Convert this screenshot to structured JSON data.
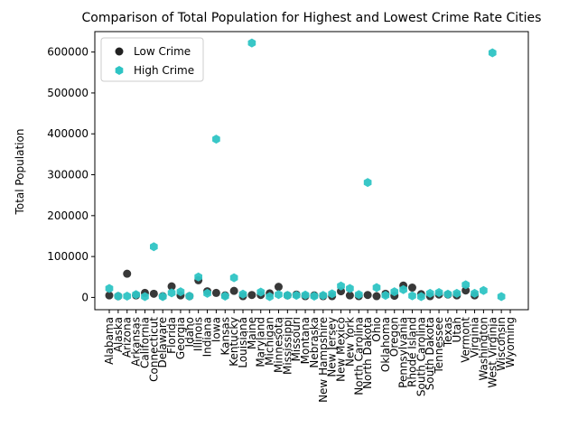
{
  "chart_data": {
    "type": "scatter",
    "title": "Comparison of Total Population for Highest and Lowest Crime Rate Cities",
    "xlabel": "",
    "ylabel": "Total Population",
    "ylim": [
      -30000,
      650000
    ],
    "yticks": [
      0,
      100000,
      200000,
      300000,
      400000,
      500000,
      600000
    ],
    "grid": false,
    "legend_position": "top-left",
    "categories": [
      "Alabama",
      "Alaska",
      "Arizona",
      "Arkansas",
      "California",
      "Connecticut",
      "Delaware",
      "Florida",
      "Georgia",
      "Idaho",
      "Illinois",
      "Indiana",
      "Iowa",
      "Kansas",
      "Kentucky",
      "Louisiana",
      "Maine",
      "Maryland",
      "Michigan",
      "Minnesota",
      "Mississippi",
      "Missouri",
      "Montana",
      "Nebraska",
      "New Hampshire",
      "New Jersey",
      "New Mexico",
      "New York",
      "North Carolina",
      "North Dakota",
      "Ohio",
      "Oklahoma",
      "Oregon",
      "Pennsylvania",
      "Rhode Island",
      "South Carolina",
      "South Dakota",
      "Tennessee",
      "Texas",
      "Utah",
      "Vermont",
      "Virginia",
      "Washington",
      "West Virginia",
      "Wisconsin",
      "Wyoming"
    ],
    "series": [
      {
        "name": "Low Crime",
        "color": "#222222",
        "marker": "circle",
        "values": [
          5000,
          3000,
          58000,
          5000,
          11000,
          9000,
          3000,
          27000,
          5000,
          3000,
          42000,
          15000,
          11000,
          5000,
          16000,
          3000,
          6000,
          6000,
          10000,
          26000,
          5000,
          7000,
          3000,
          5000,
          3000,
          3000,
          15000,
          5000,
          3000,
          6000,
          3000,
          9000,
          4000,
          29000,
          24000,
          8000,
          3000,
          7000,
          7000,
          5000,
          17000,
          5000,
          null,
          null,
          null,
          null
        ]
      },
      {
        "name": "High Crime",
        "color": "#2ec4c4",
        "marker": "hexagon",
        "values": [
          22000,
          3000,
          3000,
          7000,
          2000,
          124000,
          2000,
          11000,
          14000,
          3000,
          50000,
          10000,
          387000,
          3000,
          48000,
          8000,
          622000,
          13000,
          2000,
          7000,
          5000,
          5000,
          6000,
          3000,
          5000,
          9000,
          28000,
          22000,
          7000,
          281000,
          24000,
          5000,
          14000,
          19000,
          4000,
          2000,
          10000,
          12000,
          8000,
          10000,
          31000,
          10000,
          17000,
          598000,
          2000,
          null
        ]
      }
    ]
  }
}
